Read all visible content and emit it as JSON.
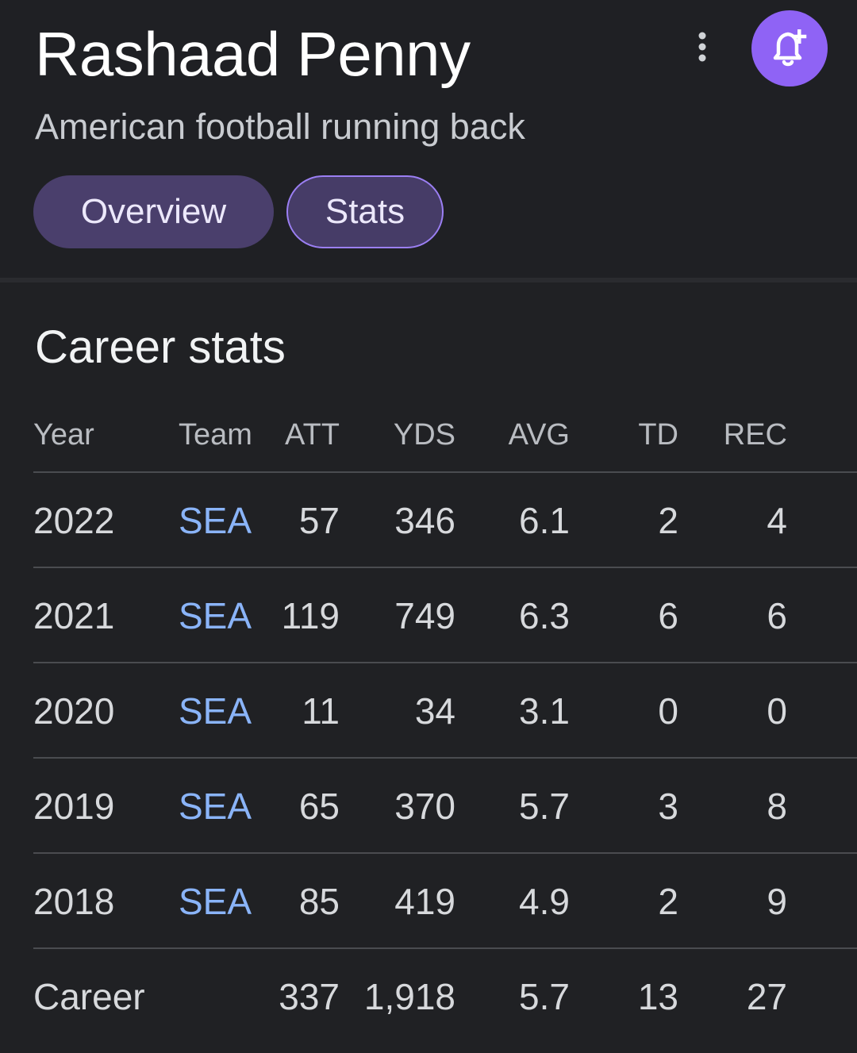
{
  "header": {
    "title": "Rashaad Penny",
    "subtitle": "American football running back",
    "more_icon": "more-vert-icon",
    "alert_icon": "bell-plus-icon",
    "accent_color": "#8f63f5"
  },
  "tabs": [
    {
      "label": "Overview",
      "selected": false
    },
    {
      "label": "Stats",
      "selected": true
    }
  ],
  "career_stats": {
    "title": "Career stats",
    "columns": [
      "Year",
      "Team",
      "ATT",
      "YDS",
      "AVG",
      "TD",
      "REC"
    ],
    "rows": [
      {
        "year": "2022",
        "team": "SEA",
        "att": "57",
        "yds": "346",
        "avg": "6.1",
        "td": "2",
        "rec": "4"
      },
      {
        "year": "2021",
        "team": "SEA",
        "att": "119",
        "yds": "749",
        "avg": "6.3",
        "td": "6",
        "rec": "6"
      },
      {
        "year": "2020",
        "team": "SEA",
        "att": "11",
        "yds": "34",
        "avg": "3.1",
        "td": "0",
        "rec": "0"
      },
      {
        "year": "2019",
        "team": "SEA",
        "att": "65",
        "yds": "370",
        "avg": "5.7",
        "td": "3",
        "rec": "8"
      },
      {
        "year": "2018",
        "team": "SEA",
        "att": "85",
        "yds": "419",
        "avg": "4.9",
        "td": "2",
        "rec": "9"
      }
    ],
    "career": {
      "label": "Career",
      "att": "337",
      "yds": "1,918",
      "avg": "5.7",
      "td": "13",
      "rec": "27"
    }
  }
}
